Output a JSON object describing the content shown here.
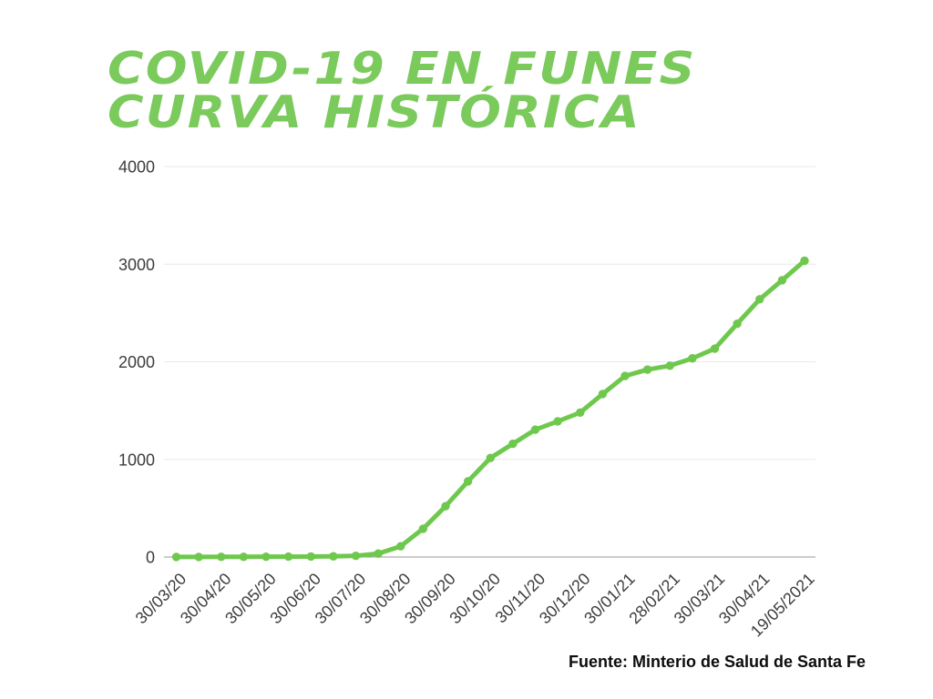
{
  "page": {
    "background": "#ffffff"
  },
  "title": {
    "line1": "COVID-19 EN FUNES",
    "line2": "CURVA HISTÓRICA",
    "color": "#7BCA5C"
  },
  "source": {
    "text": "Fuente: Minterio de Salud de Santa Fe"
  },
  "chart_data": {
    "type": "line",
    "title": "COVID-19 en Funes — Curva histórica",
    "xlabel": "",
    "ylabel": "",
    "x_tick_labels": [
      "30/03/20",
      "30/04/20",
      "30/05/20",
      "30/06/20",
      "30/07/20",
      "30/08/20",
      "30/09/20",
      "30/10/20",
      "30/11/20",
      "30/12/20",
      "30/01/21",
      "28/02/21",
      "30/03/21",
      "30/04/21",
      "19/05/2021"
    ],
    "label_every": 2,
    "values": [
      1,
      1,
      2,
      2,
      3,
      4,
      5,
      7,
      12,
      35,
      110,
      290,
      520,
      775,
      1015,
      1160,
      1305,
      1390,
      1480,
      1670,
      1855,
      1920,
      1960,
      2035,
      2135,
      2390,
      2640,
      2835,
      3035
    ],
    "ylim": [
      0,
      4000
    ],
    "y_ticks": [
      0,
      1000,
      2000,
      3000,
      4000
    ],
    "grid": true,
    "legend": false,
    "marker": "circle",
    "line_color": "#6FC84E",
    "gridline_color": "#e9e9e9",
    "axis_line_color": "#9a9a9a",
    "tick_label_color": "#3d3d3d"
  }
}
